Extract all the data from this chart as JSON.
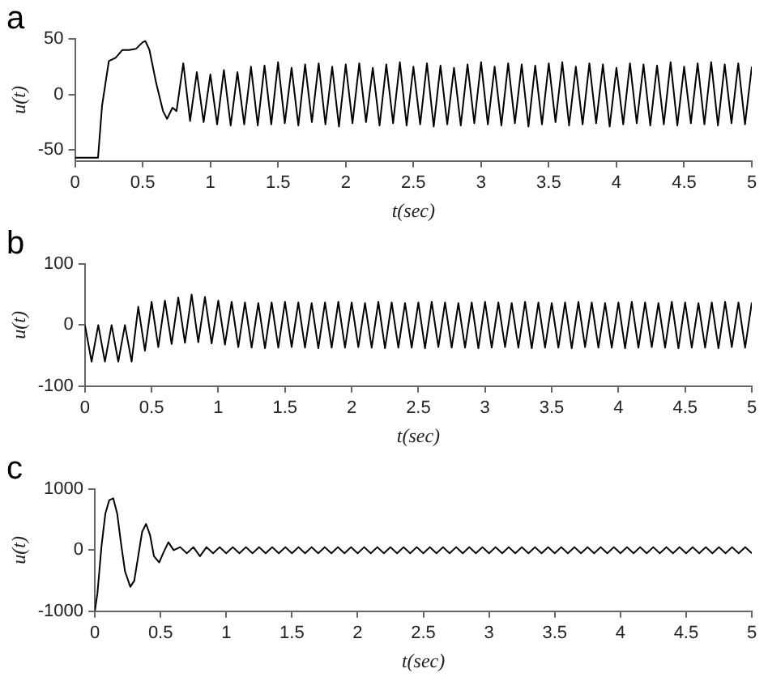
{
  "chart_data": [
    {
      "type": "line",
      "title": "a",
      "xlabel": "t(sec)",
      "ylabel": "u(t)",
      "xlim": [
        0,
        5
      ],
      "xticks": [
        0,
        0.5,
        1,
        1.5,
        2,
        2.5,
        3,
        3.5,
        4,
        4.5,
        5
      ],
      "ylim": [
        -60,
        50
      ],
      "yticks": [
        -50,
        0,
        50
      ],
      "grid": false,
      "marker": "none",
      "legend": false,
      "x": [
        0,
        0.05,
        0.1,
        0.15,
        0.17,
        0.2,
        0.25,
        0.3,
        0.35,
        0.4,
        0.45,
        0.5,
        0.52,
        0.55,
        0.6,
        0.65,
        0.68,
        0.72,
        0.75,
        0.8,
        0.85,
        0.9,
        0.95,
        1,
        1.05,
        1.1,
        1.15,
        1.2,
        1.25,
        1.3,
        1.35,
        1.4,
        1.45,
        1.5,
        1.55,
        1.6,
        1.65,
        1.7,
        1.75,
        1.8,
        1.85,
        1.9,
        1.95,
        2,
        2.05,
        2.1,
        2.15,
        2.2,
        2.25,
        2.3,
        2.35,
        2.4,
        2.45,
        2.5,
        2.55,
        2.6,
        2.65,
        2.7,
        2.75,
        2.8,
        2.85,
        2.9,
        2.95,
        3,
        3.05,
        3.1,
        3.15,
        3.2,
        3.25,
        3.3,
        3.35,
        3.4,
        3.45,
        3.5,
        3.55,
        3.6,
        3.65,
        3.7,
        3.75,
        3.8,
        3.85,
        3.9,
        3.95,
        4,
        4.05,
        4.1,
        4.15,
        4.2,
        4.25,
        4.3,
        4.35,
        4.4,
        4.45,
        4.5,
        4.55,
        4.6,
        4.65,
        4.7,
        4.75,
        4.8,
        4.85,
        4.9,
        4.95,
        5
      ],
      "series": [
        {
          "color": "#000000",
          "values": [
            -57,
            -57,
            -57,
            -57,
            -57,
            -10,
            30,
            33,
            40,
            40,
            41,
            47,
            48,
            40,
            10,
            -15,
            -22,
            -12,
            -15,
            28,
            -24,
            20,
            -25,
            18,
            -27,
            22,
            -28,
            20,
            -27,
            25,
            -28,
            26,
            -27,
            29,
            -26,
            24,
            -28,
            27,
            -25,
            28,
            -27,
            25,
            -29,
            27,
            -26,
            28,
            -25,
            24,
            -28,
            27,
            -26,
            29,
            -28,
            25,
            -27,
            28,
            -29,
            26,
            -27,
            24,
            -28,
            27,
            -26,
            29,
            -27,
            25,
            -28,
            28,
            -26,
            27,
            -29,
            26,
            -27,
            28,
            -25,
            29,
            -28,
            25,
            -27,
            28,
            -26,
            27,
            -29,
            24,
            -27,
            28,
            -26,
            27,
            -28,
            26,
            -27,
            29,
            -28,
            25,
            -26,
            28,
            -27,
            29,
            -28,
            27,
            -26,
            28,
            -27,
            25
          ]
        }
      ]
    },
    {
      "type": "line",
      "title": "b",
      "xlabel": "t(sec)",
      "ylabel": "u(t)",
      "xlim": [
        0,
        5
      ],
      "xticks": [
        0,
        0.5,
        1,
        1.5,
        2,
        2.5,
        3,
        3.5,
        4,
        4.5,
        5
      ],
      "ylim": [
        -100,
        100
      ],
      "yticks": [
        -100,
        0,
        100
      ],
      "grid": false,
      "marker": "none",
      "legend": false,
      "x": [
        0,
        0.05,
        0.1,
        0.15,
        0.2,
        0.25,
        0.3,
        0.35,
        0.4,
        0.45,
        0.5,
        0.55,
        0.6,
        0.65,
        0.7,
        0.75,
        0.8,
        0.85,
        0.9,
        0.95,
        1,
        1.05,
        1.1,
        1.15,
        1.2,
        1.25,
        1.3,
        1.35,
        1.4,
        1.45,
        1.5,
        1.55,
        1.6,
        1.65,
        1.7,
        1.75,
        1.8,
        1.85,
        1.9,
        1.95,
        2,
        2.05,
        2.1,
        2.15,
        2.2,
        2.25,
        2.3,
        2.35,
        2.4,
        2.45,
        2.5,
        2.55,
        2.6,
        2.65,
        2.7,
        2.75,
        2.8,
        2.85,
        2.9,
        2.95,
        3,
        3.05,
        3.1,
        3.15,
        3.2,
        3.25,
        3.3,
        3.35,
        3.4,
        3.45,
        3.5,
        3.55,
        3.6,
        3.65,
        3.7,
        3.75,
        3.8,
        3.85,
        3.9,
        3.95,
        4,
        4.05,
        4.1,
        4.15,
        4.2,
        4.25,
        4.3,
        4.35,
        4.4,
        4.45,
        4.5,
        4.55,
        4.6,
        4.65,
        4.7,
        4.75,
        4.8,
        4.85,
        4.9,
        4.95,
        5
      ],
      "series": [
        {
          "color": "#000000",
          "values": [
            0,
            -60,
            0,
            -60,
            0,
            -60,
            0,
            -60,
            30,
            -42,
            38,
            -36,
            40,
            -31,
            45,
            -29,
            50,
            -28,
            46,
            -30,
            40,
            -32,
            38,
            -36,
            37,
            -37,
            36,
            -38,
            37,
            -37,
            38,
            -36,
            37,
            -37,
            36,
            -38,
            37,
            -37,
            38,
            -37,
            37,
            -36,
            36,
            -37,
            38,
            -38,
            37,
            -37,
            36,
            -37,
            37,
            -38,
            38,
            -36,
            37,
            -37,
            36,
            -37,
            37,
            -38,
            38,
            -37,
            37,
            -36,
            36,
            -37,
            38,
            -38,
            37,
            -37,
            36,
            -37,
            37,
            -38,
            38,
            -36,
            37,
            -37,
            36,
            -37,
            37,
            -38,
            38,
            -37,
            37,
            -36,
            36,
            -37,
            38,
            -38,
            37,
            -37,
            36,
            -37,
            37,
            -38,
            38,
            -36,
            37,
            -37,
            37
          ]
        }
      ]
    },
    {
      "type": "line",
      "title": "c",
      "xlabel": "t(sec)",
      "ylabel": "u(t)",
      "xlim": [
        0,
        5
      ],
      "xticks": [
        0,
        0.5,
        1,
        1.5,
        2,
        2.5,
        3,
        3.5,
        4,
        4.5,
        5
      ],
      "ylim": [
        -1000,
        1000
      ],
      "yticks": [
        -1000,
        0,
        1000
      ],
      "grid": false,
      "marker": "none",
      "legend": false,
      "x": [
        0,
        0.02,
        0.05,
        0.08,
        0.11,
        0.14,
        0.17,
        0.2,
        0.23,
        0.27,
        0.3,
        0.33,
        0.36,
        0.39,
        0.42,
        0.45,
        0.49,
        0.52,
        0.56,
        0.6,
        0.65,
        0.7,
        0.75,
        0.8,
        0.85,
        0.9,
        0.95,
        1,
        1.05,
        1.1,
        1.15,
        1.2,
        1.25,
        1.3,
        1.35,
        1.4,
        1.45,
        1.5,
        1.55,
        1.6,
        1.65,
        1.7,
        1.75,
        1.8,
        1.85,
        1.9,
        1.95,
        2,
        2.05,
        2.1,
        2.15,
        2.2,
        2.25,
        2.3,
        2.35,
        2.4,
        2.45,
        2.5,
        2.55,
        2.6,
        2.65,
        2.7,
        2.75,
        2.8,
        2.85,
        2.9,
        2.95,
        3,
        3.05,
        3.1,
        3.15,
        3.2,
        3.25,
        3.3,
        3.35,
        3.4,
        3.45,
        3.5,
        3.55,
        3.6,
        3.65,
        3.7,
        3.75,
        3.8,
        3.85,
        3.9,
        3.95,
        4,
        4.05,
        4.1,
        4.15,
        4.2,
        4.25,
        4.3,
        4.35,
        4.4,
        4.45,
        4.5,
        4.55,
        4.6,
        4.65,
        4.7,
        4.75,
        4.8,
        4.85,
        4.9,
        4.95,
        5
      ],
      "series": [
        {
          "color": "#000000",
          "values": [
            -1000,
            -700,
            50,
            600,
            820,
            850,
            600,
            100,
            -350,
            -600,
            -500,
            -100,
            300,
            430,
            250,
            -100,
            -200,
            -50,
            130,
            0,
            50,
            -50,
            50,
            -100,
            50,
            -50,
            50,
            -50,
            50,
            -50,
            50,
            -50,
            50,
            -50,
            50,
            -50,
            50,
            -50,
            50,
            -50,
            50,
            -50,
            50,
            -50,
            50,
            -50,
            50,
            -50,
            50,
            -50,
            50,
            -50,
            50,
            -50,
            50,
            -50,
            50,
            -50,
            50,
            -50,
            50,
            -50,
            50,
            -50,
            50,
            -50,
            50,
            -50,
            50,
            -50,
            50,
            -50,
            50,
            -50,
            50,
            -50,
            50,
            -50,
            50,
            -50,
            50,
            -50,
            50,
            -50,
            50,
            -50,
            50,
            -50,
            50,
            -50,
            50,
            -50,
            50,
            -50,
            50,
            -50,
            50,
            -50,
            50,
            -50,
            50,
            -50,
            50,
            -50,
            50,
            -50,
            50,
            -50
          ]
        }
      ]
    }
  ]
}
